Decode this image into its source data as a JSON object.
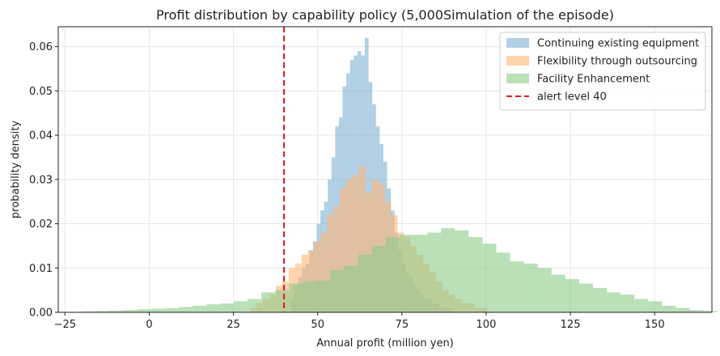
{
  "chart_data": {
    "type": "histogram",
    "title": "Profit distribution by capability policy (5,000Simulation of the episode)",
    "xlabel": "Annual profit (million yen)",
    "ylabel": "probability density",
    "xlim": [
      -27,
      167
    ],
    "ylim": [
      0,
      0.0645
    ],
    "xticks": [
      -25,
      0,
      25,
      50,
      75,
      100,
      125,
      150
    ],
    "yticks": [
      0.0,
      0.01,
      0.02,
      0.03,
      0.04,
      0.05,
      0.06
    ],
    "ytick_format": "0.00",
    "grid": true,
    "legend_position": "top-right",
    "series": [
      {
        "name": "Continuing existing equipment",
        "color": "#7fb0d4",
        "bin_start": 42,
        "bin_width": 1.1,
        "values": [
          0.003,
          0.006,
          0.008,
          0.01,
          0.011,
          0.014,
          0.016,
          0.02,
          0.023,
          0.025,
          0.03,
          0.035,
          0.042,
          0.044,
          0.051,
          0.054,
          0.057,
          0.058,
          0.059,
          0.058,
          0.062,
          0.052,
          0.047,
          0.042,
          0.038,
          0.034,
          0.028,
          0.023,
          0.018,
          0.014,
          0.011,
          0.009,
          0.008,
          0.006,
          0.005,
          0.004,
          0.003,
          0.003,
          0.002,
          0.002,
          0.001,
          0.001,
          0.001
        ]
      },
      {
        "name": "Flexibility through outsourcing",
        "color": "#ffb574",
        "bin_start": 30,
        "bin_width": 1.9,
        "values": [
          0.001,
          0.002,
          0.003,
          0.004,
          0.006,
          0.007,
          0.01,
          0.011,
          0.013,
          0.014,
          0.016,
          0.018,
          0.022,
          0.024,
          0.028,
          0.03,
          0.031,
          0.033,
          0.027,
          0.03,
          0.029,
          0.025,
          0.022,
          0.018,
          0.017,
          0.015,
          0.013,
          0.011,
          0.009,
          0.007,
          0.005,
          0.004,
          0.003,
          0.002,
          0.002,
          0.001,
          0.001
        ]
      },
      {
        "name": "Facility Enhancement",
        "color": "#8ccc88",
        "bin_start": -20,
        "bin_width": 4.1,
        "values": [
          0.0002,
          0.0003,
          0.0004,
          0.0005,
          0.0007,
          0.0008,
          0.0009,
          0.0012,
          0.0015,
          0.0018,
          0.002,
          0.0025,
          0.003,
          0.0045,
          0.005,
          0.0065,
          0.007,
          0.0072,
          0.0095,
          0.0105,
          0.013,
          0.015,
          0.017,
          0.0175,
          0.0175,
          0.018,
          0.019,
          0.0185,
          0.017,
          0.0155,
          0.0135,
          0.0115,
          0.011,
          0.01,
          0.0085,
          0.0075,
          0.0065,
          0.0055,
          0.0045,
          0.004,
          0.003,
          0.0025,
          0.0015,
          0.001,
          0.0005,
          0.0003
        ]
      }
    ],
    "reference_line": {
      "name": "alert level 40",
      "x": 40,
      "color": "#e31a1c",
      "style": "dashed"
    }
  }
}
